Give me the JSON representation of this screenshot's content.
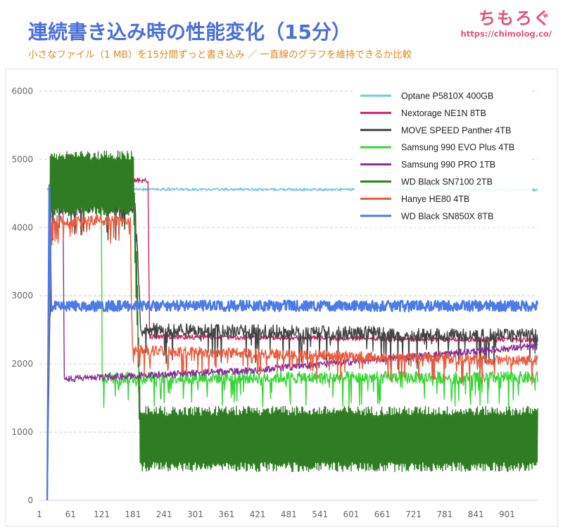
{
  "header": {
    "title": "連続書き込み時の性能変化（15分）",
    "subtitle": "小さなファイル（1 MB）を15分間ずっと書き込み ／ 一直線のグラフを維持できるか比較"
  },
  "brand": {
    "name": "ちもろぐ",
    "url": "https://chimolog.co/"
  },
  "chart_data": {
    "type": "line",
    "title": "連続書き込み時の性能変化（15分）",
    "subtitle": "小さなファイル（1 MB）を15分間ずっと書き込み ／ 一直線のグラフを維持できるか比較",
    "xlabel": "",
    "ylabel": "",
    "xlim": [
      1,
      960
    ],
    "ylim": [
      0,
      6200
    ],
    "x_ticks": [
      1,
      61,
      121,
      181,
      241,
      301,
      361,
      421,
      481,
      541,
      601,
      661,
      721,
      781,
      841,
      901
    ],
    "y_ticks": [
      0,
      1000,
      2000,
      3000,
      4000,
      5000,
      6000
    ],
    "grid": "horizontal",
    "legend_position": "top-right",
    "series": [
      {
        "name": "Optane P5810X 400GB",
        "color": "#79c6e0",
        "segments": [
          {
            "x0": 16,
            "x1": 960,
            "levels": [
              [
                16,
                4560
              ],
              [
                190,
                4560
              ],
              [
                940,
                4550
              ]
            ],
            "noise": 20,
            "mode": "uniform"
          }
        ]
      },
      {
        "name": "Nextorage NE1N 8TB",
        "color": "#d6246a",
        "segments": [
          {
            "x0": 16,
            "x1": 960,
            "levels": [
              [
                16,
                0
              ],
              [
                22,
                4700
              ],
              [
                210,
                4690
              ],
              [
                213,
                2400
              ],
              [
                960,
                2350
              ]
            ],
            "noise": 35,
            "mode": "uniform"
          }
        ]
      },
      {
        "name": "MOVE SPEED Panther 4TB",
        "color": "#444444",
        "segments": [
          {
            "x0": 16,
            "x1": 960,
            "levels": [
              [
                16,
                0
              ],
              [
                24,
                4300
              ],
              [
                186,
                4300
              ],
              [
                196,
                2500
              ],
              [
                660,
                2450
              ],
              [
                670,
                2420
              ],
              [
                960,
                2420
              ]
            ],
            "noise": 200,
            "mode": "spiky"
          }
        ]
      },
      {
        "name": "Samsung 990 EVO Plus 4TB",
        "color": "#35d635",
        "segments": [
          {
            "x0": 16,
            "x1": 960,
            "levels": [
              [
                16,
                0
              ],
              [
                22,
                4600
              ],
              [
                120,
                4600
              ],
              [
                122,
                1800
              ],
              [
                960,
                1800
              ]
            ],
            "noise": 180,
            "mode": "spiky"
          }
        ]
      },
      {
        "name": "Samsung 990 PRO 1TB",
        "color": "#8b2d9a",
        "segments": [
          {
            "x0": 16,
            "x1": 960,
            "levels": [
              [
                16,
                0
              ],
              [
                22,
                4650
              ],
              [
                46,
                4650
              ],
              [
                49,
                1780
              ],
              [
                400,
                1900
              ],
              [
                940,
                2250
              ],
              [
                960,
                2250
              ]
            ],
            "noise": 50,
            "mode": "uniform"
          }
        ]
      },
      {
        "name": "WD Black SN7100 2TB",
        "color": "#2f7d23",
        "segments": [
          {
            "x0": 16,
            "x1": 960,
            "levels": [
              [
                16,
                0
              ],
              [
                22,
                4650
              ],
              [
                182,
                4650
              ],
              [
                190,
                2700
              ],
              [
                195,
                900
              ],
              [
                960,
                900
              ]
            ],
            "noise": 480,
            "mode": "band"
          }
        ]
      },
      {
        "name": "Hanye HE80 4TB",
        "color": "#ea5a3c",
        "segments": [
          {
            "x0": 16,
            "x1": 960,
            "levels": [
              [
                16,
                0
              ],
              [
                22,
                4100
              ],
              [
                176,
                4100
              ],
              [
                180,
                2200
              ],
              [
                940,
                2050
              ],
              [
                960,
                2050
              ]
            ],
            "noise": 150,
            "mode": "spiky"
          }
        ]
      },
      {
        "name": "WD Black SN850X 8TB",
        "color": "#4c7be8",
        "segments": [
          {
            "x0": 16,
            "x1": 960,
            "levels": [
              [
                16,
                0
              ],
              [
                20,
                4700
              ],
              [
                24,
                2850
              ],
              [
                960,
                2850
              ]
            ],
            "noise": 80,
            "mode": "uniform"
          }
        ]
      }
    ]
  }
}
